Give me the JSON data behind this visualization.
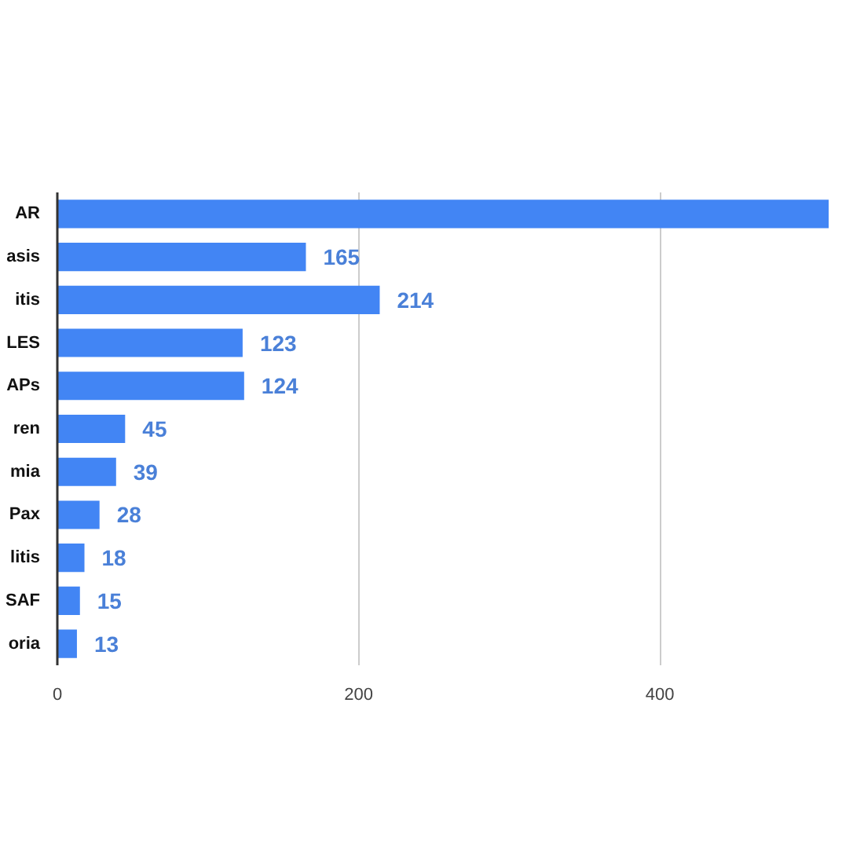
{
  "chart_data": {
    "type": "bar",
    "orientation": "horizontal",
    "categories": [
      "AR",
      "asis",
      "itis",
      "LES",
      "APs",
      "ren",
      "mia",
      "Pax",
      "litis",
      "SAF",
      "oria"
    ],
    "values": [
      512,
      165,
      214,
      123,
      124,
      45,
      39,
      28,
      18,
      15,
      13
    ],
    "value_labels": [
      null,
      "165",
      "214",
      "123",
      "124",
      "45",
      "39",
      "28",
      "18",
      "15",
      "13"
    ],
    "color": "#4285f4",
    "xlim": [
      0,
      512
    ],
    "xticks": [
      0,
      200,
      400
    ],
    "grid": "x"
  }
}
